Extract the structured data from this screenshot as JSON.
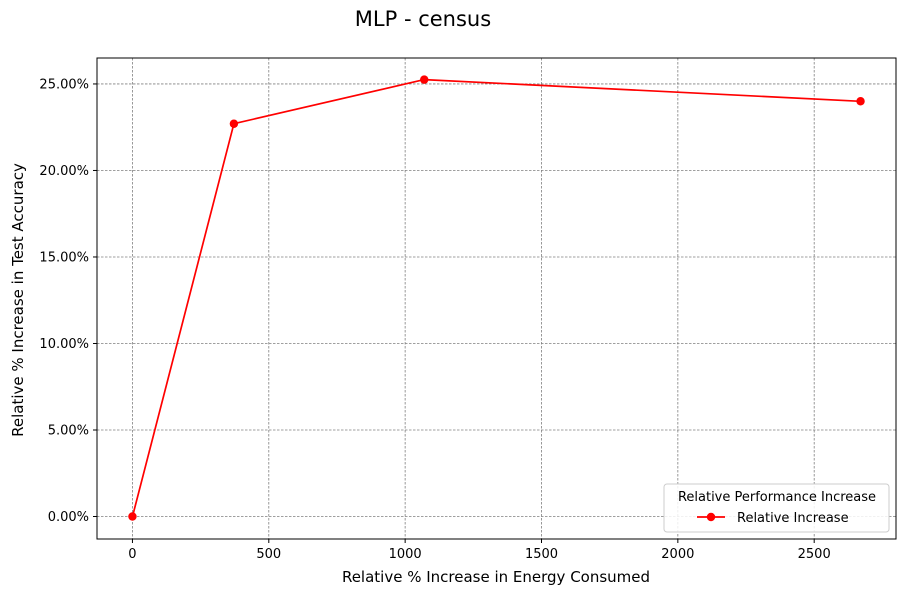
{
  "chart_data": {
    "type": "line",
    "title": "MLP - census",
    "xlabel": "Relative % Increase in Energy Consumed",
    "ylabel": "Relative % Increase in Test Accuracy",
    "xlim": [
      -130,
      2800
    ],
    "ylim": [
      -1.3,
      26.5
    ],
    "x_ticks": [
      0,
      500,
      1000,
      1500,
      2000,
      2500
    ],
    "x_tick_labels": [
      "0",
      "500",
      "1000",
      "1500",
      "2000",
      "2500"
    ],
    "y_ticks": [
      0,
      5,
      10,
      15,
      20,
      25
    ],
    "y_tick_labels": [
      "0.00%",
      "5.00%",
      "10.00%",
      "15.00%",
      "20.00%",
      "25.00%"
    ],
    "grid": true,
    "legend": {
      "title": "Relative Performance Increase",
      "placement": "lower-right"
    },
    "series": [
      {
        "name": "Relative Increase",
        "color": "#ff0000",
        "marker": "circle",
        "x": [
          0,
          372,
          1070,
          2670
        ],
        "y": [
          0.0,
          22.7,
          25.25,
          24.0
        ]
      }
    ]
  }
}
